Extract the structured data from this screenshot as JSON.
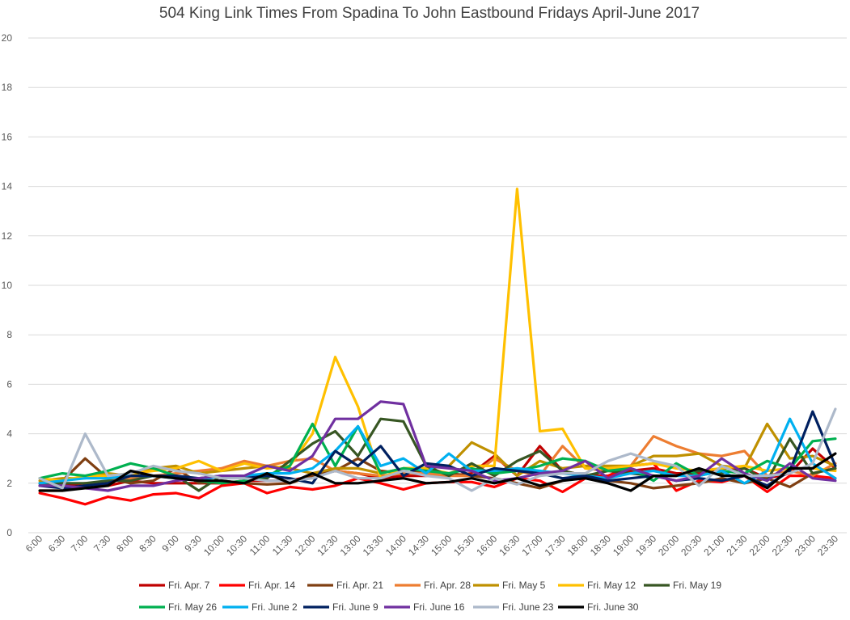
{
  "chart_data": {
    "type": "line",
    "title": "504 King Link Times From Spadina To John Eastbound Fridays April-June 2017",
    "xlabel": "",
    "ylabel": "",
    "ylim": [
      0,
      20
    ],
    "yticks": [
      0,
      2,
      4,
      6,
      8,
      10,
      12,
      14,
      16,
      18,
      20
    ],
    "grid": true,
    "legend_position": "bottom",
    "x": [
      "6:00",
      "6:30",
      "7:00",
      "7:30",
      "8:00",
      "8:30",
      "9:00",
      "9:30",
      "10:00",
      "10:30",
      "11:00",
      "11:30",
      "12:00",
      "12:30",
      "13:00",
      "13:30",
      "14:00",
      "14:30",
      "15:00",
      "15:30",
      "16:00",
      "16:30",
      "17:00",
      "17:30",
      "18:00",
      "18:30",
      "19:00",
      "19:30",
      "20:00",
      "20:30",
      "21:00",
      "21:30",
      "22:00",
      "22:30",
      "23:00",
      "23:30"
    ],
    "series": [
      {
        "name": "Fri. Apr. 7",
        "color": "#c00000",
        "values": [
          1.9,
          1.9,
          2.0,
          1.9,
          2.1,
          2.0,
          2.0,
          2.0,
          2.0,
          2.1,
          2.1,
          2.1,
          2.3,
          2.5,
          2.4,
          2.2,
          2.3,
          2.3,
          2.3,
          2.4,
          3.1,
          2.3,
          3.5,
          2.5,
          2.3,
          2.3,
          2.5,
          2.6,
          2.4,
          2.4,
          2.6,
          2.6,
          2.2,
          2.4,
          3.4,
          2.6
        ]
      },
      {
        "name": "Fri. Apr. 14",
        "color": "#ff0000",
        "values": [
          1.6,
          1.4,
          1.15,
          1.45,
          1.3,
          1.55,
          1.6,
          1.4,
          1.9,
          2.0,
          1.6,
          1.85,
          1.75,
          1.9,
          2.2,
          2.0,
          1.75,
          2.0,
          2.05,
          2.05,
          1.85,
          2.2,
          2.1,
          1.65,
          2.2,
          2.3,
          2.7,
          2.8,
          1.7,
          2.1,
          2.05,
          2.3,
          1.65,
          2.3,
          2.3,
          2.2
        ]
      },
      {
        "name": "Fri. Apr. 21",
        "color": "#7f3f12",
        "values": [
          2.0,
          2.1,
          3.0,
          2.2,
          2.0,
          2.1,
          2.6,
          2.0,
          2.1,
          2.0,
          1.95,
          2.0,
          2.3,
          2.5,
          3.0,
          2.5,
          2.4,
          2.5,
          2.4,
          2.3,
          2.2,
          2.0,
          1.8,
          2.1,
          2.3,
          2.1,
          2.0,
          1.8,
          1.9,
          2.0,
          2.2,
          2.0,
          2.2,
          1.85,
          2.4,
          2.6
        ]
      },
      {
        "name": "Fri. Apr. 28",
        "color": "#ed7d31",
        "values": [
          1.7,
          1.7,
          1.9,
          2.1,
          2.2,
          2.3,
          2.4,
          2.5,
          2.6,
          2.9,
          2.7,
          2.9,
          3.0,
          2.5,
          2.4,
          2.3,
          2.4,
          2.4,
          2.3,
          2.3,
          3.0,
          2.5,
          2.3,
          3.5,
          2.6,
          2.5,
          2.7,
          3.9,
          3.5,
          3.2,
          3.1,
          3.3,
          2.3,
          2.5,
          2.3,
          2.8
        ]
      },
      {
        "name": "Fri. May 5",
        "color": "#bf9000",
        "values": [
          2.1,
          2.2,
          2.2,
          2.4,
          2.3,
          2.6,
          2.7,
          2.4,
          2.5,
          2.6,
          2.7,
          2.6,
          2.4,
          2.6,
          2.6,
          2.4,
          2.6,
          2.6,
          2.7,
          3.65,
          3.2,
          2.3,
          2.9,
          2.6,
          2.7,
          2.7,
          2.7,
          3.1,
          3.1,
          3.2,
          2.7,
          2.6,
          4.4,
          3.0,
          3.1,
          2.7
        ]
      },
      {
        "name": "Fri. May 12",
        "color": "#ffc000",
        "values": [
          2.2,
          2.1,
          2.3,
          2.3,
          2.4,
          2.5,
          2.6,
          2.9,
          2.5,
          2.8,
          2.6,
          2.7,
          4.0,
          7.1,
          5.1,
          2.2,
          2.6,
          2.6,
          2.4,
          2.7,
          2.7,
          13.9,
          4.1,
          4.2,
          2.6,
          2.6,
          2.7,
          2.8,
          2.6,
          2.5,
          2.6,
          2.7,
          2.5,
          2.6,
          2.6,
          2.5
        ]
      },
      {
        "name": "Fri. May 19",
        "color": "#375623",
        "values": [
          2.0,
          2.0,
          2.0,
          2.1,
          2.1,
          2.3,
          2.3,
          1.7,
          2.3,
          2.2,
          2.2,
          2.9,
          3.6,
          4.1,
          3.1,
          4.6,
          4.5,
          2.7,
          2.3,
          2.8,
          2.3,
          2.9,
          3.3,
          2.5,
          2.3,
          2.5,
          2.4,
          2.3,
          2.3,
          2.5,
          2.4,
          2.6,
          2.1,
          3.8,
          2.4,
          2.6
        ]
      },
      {
        "name": "Fri. May 26",
        "color": "#00b050",
        "values": [
          2.2,
          2.4,
          2.3,
          2.5,
          2.8,
          2.6,
          2.3,
          2.1,
          2.0,
          2.1,
          2.3,
          2.7,
          4.4,
          2.7,
          4.3,
          2.4,
          2.6,
          2.5,
          2.4,
          2.6,
          2.4,
          2.5,
          2.7,
          3.0,
          2.9,
          2.5,
          2.6,
          2.1,
          2.8,
          2.3,
          2.5,
          2.4,
          2.9,
          2.6,
          3.7,
          3.8
        ]
      },
      {
        "name": "Fri. June 2",
        "color": "#00b0f0",
        "values": [
          2.0,
          2.1,
          2.2,
          2.2,
          2.3,
          2.3,
          2.2,
          2.1,
          2.3,
          2.3,
          2.4,
          2.4,
          2.6,
          3.3,
          4.3,
          2.7,
          3.0,
          2.4,
          3.2,
          2.5,
          2.5,
          2.6,
          2.5,
          2.4,
          2.3,
          2.2,
          2.4,
          2.5,
          2.3,
          2.3,
          2.5,
          2.0,
          2.5,
          4.6,
          2.8,
          2.2
        ]
      },
      {
        "name": "Fri. June 9",
        "color": "#002060",
        "values": [
          1.9,
          1.8,
          1.9,
          2.0,
          2.3,
          2.3,
          2.3,
          2.2,
          2.3,
          2.2,
          2.3,
          2.2,
          2.0,
          3.3,
          2.7,
          3.5,
          2.3,
          2.8,
          2.7,
          2.3,
          2.6,
          2.5,
          2.4,
          2.2,
          2.3,
          2.1,
          2.2,
          2.3,
          2.1,
          2.2,
          2.1,
          2.3,
          1.9,
          2.5,
          4.9,
          2.7
        ]
      },
      {
        "name": "Fri. June 16",
        "color": "#7030a0",
        "values": [
          1.9,
          1.9,
          1.8,
          1.7,
          1.9,
          1.9,
          2.1,
          2.2,
          2.3,
          2.3,
          2.7,
          2.5,
          3.1,
          4.6,
          4.6,
          5.3,
          5.2,
          2.7,
          2.6,
          2.5,
          2.1,
          2.2,
          2.4,
          2.5,
          2.9,
          2.2,
          2.6,
          2.3,
          2.1,
          2.3,
          3.0,
          2.4,
          2.1,
          2.8,
          2.2,
          2.1
        ]
      },
      {
        "name": "Fri. June 23",
        "color": "#adb9ca",
        "values": [
          2.2,
          1.8,
          4.0,
          2.3,
          2.4,
          2.7,
          2.5,
          2.4,
          2.2,
          2.2,
          2.1,
          2.1,
          2.2,
          2.5,
          2.2,
          2.2,
          2.5,
          2.3,
          2.2,
          1.7,
          2.2,
          1.95,
          2.3,
          2.4,
          2.4,
          2.9,
          3.2,
          2.9,
          2.7,
          1.9,
          2.7,
          2.3,
          2.3,
          2.4,
          2.8,
          5.0
        ]
      },
      {
        "name": "Fri. June 30",
        "color": "#000000",
        "values": [
          1.7,
          1.7,
          1.8,
          1.9,
          2.5,
          2.3,
          2.2,
          2.1,
          2.1,
          2.0,
          2.4,
          2.0,
          2.4,
          2.0,
          2.0,
          2.1,
          2.2,
          2.0,
          2.05,
          2.2,
          2.0,
          2.2,
          1.9,
          2.1,
          2.2,
          2.0,
          1.7,
          2.3,
          2.3,
          2.6,
          2.3,
          2.3,
          1.8,
          2.6,
          2.6,
          3.2
        ]
      }
    ]
  }
}
